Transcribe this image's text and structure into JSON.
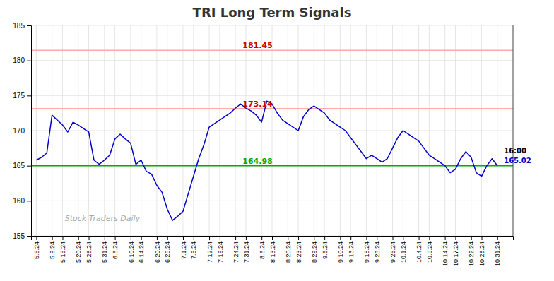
{
  "chart_data": {
    "type": "line",
    "title": "TRI Long Term Signals",
    "color": "#0000cc",
    "grid": true,
    "ylim": [
      155,
      185
    ],
    "yticks": [
      155,
      160,
      165,
      170,
      175,
      180,
      185
    ],
    "categories": [
      "5.6.24",
      null,
      null,
      "5.9.24",
      null,
      "5.15.24",
      null,
      null,
      "5.20.24",
      null,
      "5.28.24",
      null,
      null,
      "5.31.24",
      null,
      "6.5.24",
      null,
      null,
      "6.10.24",
      null,
      "6.14.24",
      null,
      null,
      "6.20.24",
      null,
      "6.25.24",
      null,
      null,
      "7.1.24",
      null,
      "7.5.24",
      null,
      null,
      "7.12.24",
      null,
      "7.19.24",
      null,
      null,
      "7.24.24",
      null,
      "7.31.24",
      null,
      null,
      "8.6.24",
      null,
      "8.13.24",
      null,
      null,
      "8.20.24",
      null,
      "8.23.24",
      null,
      null,
      "8.29.24",
      null,
      "9.5.24",
      null,
      null,
      "9.10.24",
      null,
      "9.13.24",
      null,
      null,
      "9.18.24",
      null,
      "9.23.24",
      null,
      null,
      "9.26.24",
      null,
      "10.1.24",
      null,
      null,
      "10.4.24",
      null,
      "10.9.24",
      null,
      null,
      "10.14.24",
      null,
      "10.17.24",
      null,
      null,
      "10.22.24",
      null,
      "10.28.24",
      null,
      null,
      "10.31.24"
    ],
    "values": [
      165.8,
      166.2,
      166.8,
      172.2,
      171.5,
      170.8,
      169.8,
      171.2,
      170.8,
      170.3,
      169.8,
      165.8,
      165.2,
      165.8,
      166.5,
      168.8,
      169.5,
      168.8,
      168.2,
      165.2,
      165.8,
      164.2,
      163.8,
      162.2,
      161.2,
      158.8,
      157.2,
      157.8,
      158.5,
      161.0,
      163.5,
      166.0,
      168.0,
      170.5,
      171.0,
      171.5,
      172.0,
      172.5,
      173.2,
      173.8,
      173.2,
      172.8,
      172.2,
      171.2,
      174.2,
      173.8,
      172.5,
      171.5,
      171.0,
      170.5,
      170.0,
      172.0,
      173.0,
      173.5,
      173.0,
      172.5,
      171.5,
      171.0,
      170.5,
      170.0,
      169.0,
      168.0,
      167.0,
      166.0,
      166.5,
      166.0,
      165.5,
      166.0,
      167.5,
      169.0,
      170.0,
      169.5,
      169.0,
      168.5,
      167.5,
      166.5,
      166.0,
      165.5,
      165.0,
      164.0,
      164.5,
      166.0,
      167.0,
      166.2,
      164.0,
      163.5,
      165.0,
      166.0,
      165.02
    ],
    "hlines": [
      {
        "y": 165.0,
        "color": "#00aa00",
        "label": "164.98",
        "label_color": "#00aa00"
      },
      {
        "y": 173.14,
        "color": "#ffaaaa",
        "label": "173.14",
        "label_color": "#cc0000"
      },
      {
        "y": 181.45,
        "color": "#ffaaaa",
        "label": "181.45",
        "label_color": "#cc0000"
      }
    ],
    "end_labels": [
      {
        "text": "16:00",
        "color": "#000000"
      },
      {
        "text": "165.02",
        "color": "#0000cc"
      }
    ],
    "watermark": {
      "text": "Stock Traders Daily",
      "color": "#aaaaaa"
    }
  }
}
